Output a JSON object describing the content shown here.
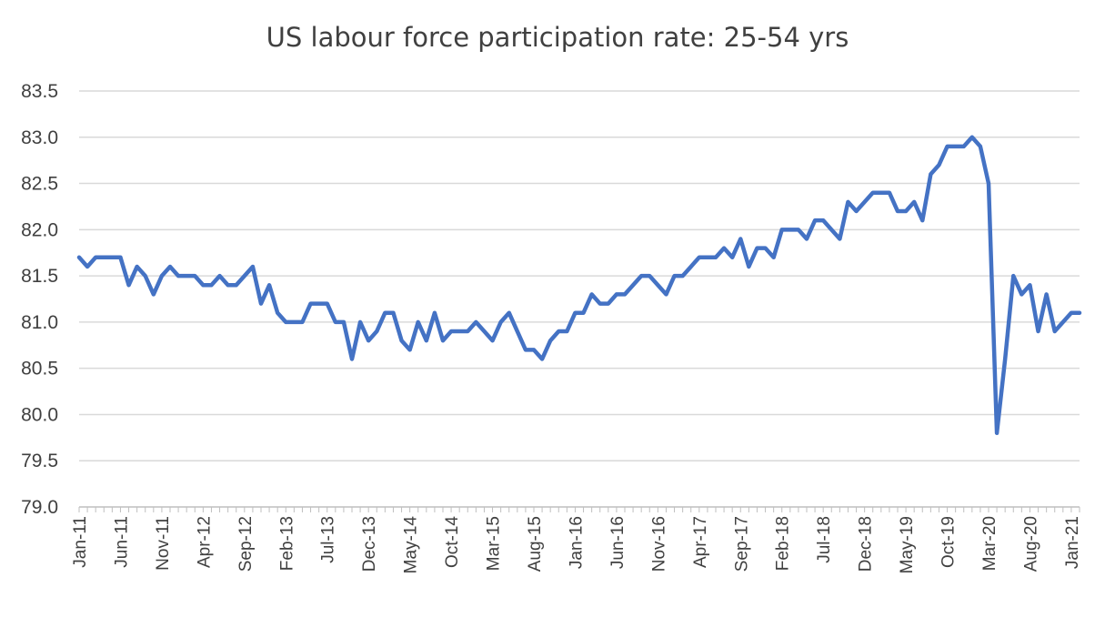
{
  "chart_data": {
    "type": "line",
    "title": "US labour force participation rate: 25-54 yrs",
    "xlabel": "",
    "ylabel": "",
    "ylim": [
      79.0,
      83.5
    ],
    "ytick_step": 0.5,
    "yticks": [
      "79.0",
      "79.5",
      "80.0",
      "80.5",
      "81.0",
      "81.5",
      "82.0",
      "82.5",
      "83.0",
      "83.5"
    ],
    "grid": true,
    "legend": "none",
    "line_color": "#4472C4",
    "grid_color": "#D9D9D9",
    "x_start": "Jan-11",
    "x_tick_labels": [
      "Jan-11",
      "Jun-11",
      "Nov-11",
      "Apr-12",
      "Sep-12",
      "Feb-13",
      "Jul-13",
      "Dec-13",
      "May-14",
      "Oct-14",
      "Mar-15",
      "Aug-15",
      "Jan-16",
      "Jun-16",
      "Nov-16",
      "Apr-17",
      "Sep-17",
      "Feb-18",
      "Jul-18",
      "Dec-18",
      "May-19",
      "Oct-19",
      "Mar-20",
      "Aug-20",
      "Jan-21"
    ],
    "x_tick_every": 5,
    "series": [
      {
        "values": [
          81.7,
          81.6,
          81.7,
          81.7,
          81.7,
          81.7,
          81.4,
          81.6,
          81.5,
          81.3,
          81.5,
          81.6,
          81.5,
          81.5,
          81.5,
          81.4,
          81.4,
          81.5,
          81.4,
          81.4,
          81.5,
          81.6,
          81.2,
          81.4,
          81.1,
          81.0,
          81.0,
          81.0,
          81.2,
          81.2,
          81.2,
          81.0,
          81.0,
          80.6,
          81.0,
          80.8,
          80.9,
          81.1,
          81.1,
          80.8,
          80.7,
          81.0,
          80.8,
          81.1,
          80.8,
          80.9,
          80.9,
          80.9,
          81.0,
          80.9,
          80.8,
          81.0,
          81.1,
          80.9,
          80.7,
          80.7,
          80.6,
          80.8,
          80.9,
          80.9,
          81.1,
          81.1,
          81.3,
          81.2,
          81.2,
          81.3,
          81.3,
          81.4,
          81.5,
          81.5,
          81.4,
          81.3,
          81.5,
          81.5,
          81.6,
          81.7,
          81.7,
          81.7,
          81.8,
          81.7,
          81.9,
          81.6,
          81.8,
          81.8,
          81.7,
          82.0,
          82.0,
          82.0,
          81.9,
          82.1,
          82.1,
          82.0,
          81.9,
          82.3,
          82.2,
          82.3,
          82.4,
          82.4,
          82.4,
          82.2,
          82.2,
          82.3,
          82.1,
          82.6,
          82.7,
          82.9,
          82.9,
          82.9,
          83.0,
          82.9,
          82.5,
          79.8,
          80.6,
          81.5,
          81.3,
          81.4,
          80.9,
          81.3,
          80.9,
          81.0,
          81.1,
          81.1
        ]
      }
    ]
  }
}
